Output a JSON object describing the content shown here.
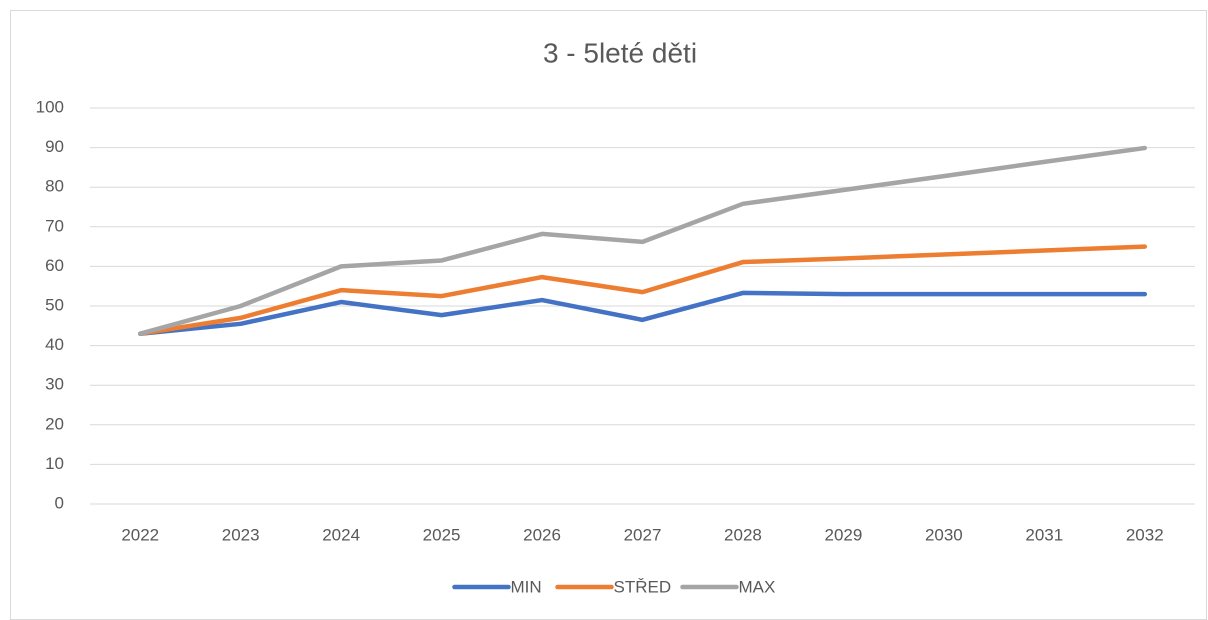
{
  "chart_data": {
    "type": "line",
    "title": "3 - 5leté děti",
    "categories": [
      "2022",
      "2023",
      "2024",
      "2025",
      "2026",
      "2027",
      "2028",
      "2029",
      "2030",
      "2031",
      "2032"
    ],
    "series": [
      {
        "name": "MIN",
        "color": "#4472c4",
        "values": [
          43,
          45.5,
          51,
          47.7,
          51.5,
          46.5,
          53.3,
          53,
          53,
          53,
          53
        ]
      },
      {
        "name": "STŘED",
        "color": "#ed7d31",
        "values": [
          43,
          47,
          54,
          52.5,
          57.3,
          53.5,
          61.1,
          62,
          63,
          64,
          65
        ]
      },
      {
        "name": "MAX",
        "color": "#a5a5a5",
        "values": [
          43,
          50,
          60,
          61.5,
          68.2,
          66.2,
          75.8,
          79.3,
          82.8,
          86.4,
          89.9
        ]
      }
    ],
    "ylim": [
      0,
      100
    ],
    "yticks": [
      0,
      10,
      20,
      30,
      40,
      50,
      60,
      70,
      80,
      90,
      100
    ],
    "grid": true,
    "legend": "bottom"
  }
}
